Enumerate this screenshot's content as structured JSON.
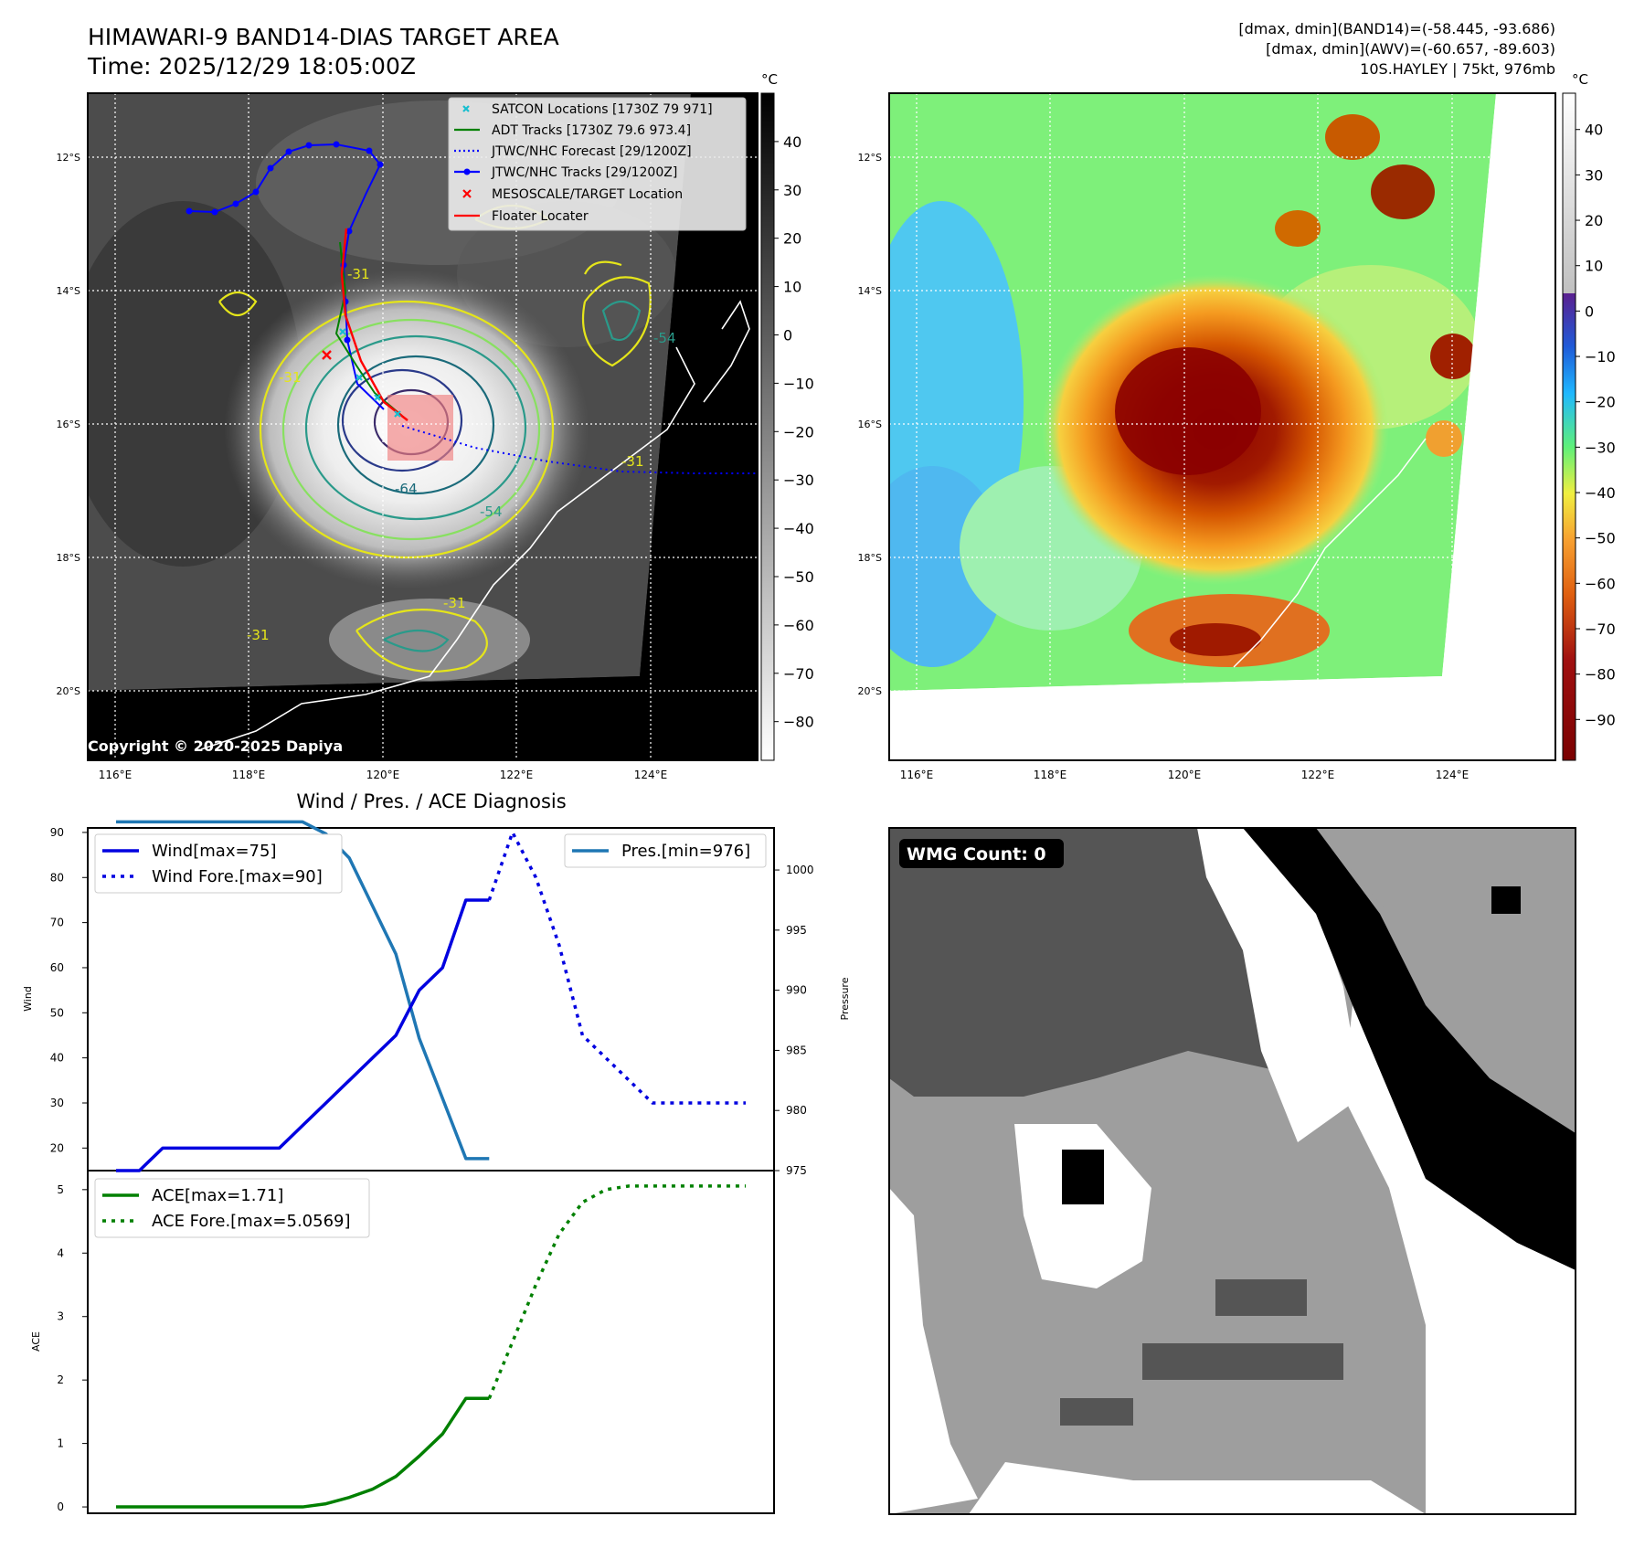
{
  "header": {
    "title": "HIMAWARI-9 BAND14-DIAS TARGET AREA",
    "time": "Time: 2025/12/29 18:05:00Z",
    "dmax_band14": "[dmax, dmin](BAND14)=(-58.445, -93.686)",
    "dmax_awv": "[dmax, dmin](AWV)=(-60.657, -89.603)",
    "storm": "10S.HAYLEY | 75kt, 976mb"
  },
  "map": {
    "lat_labels": [
      "12°S",
      "14°S",
      "16°S",
      "18°S",
      "20°S"
    ],
    "lon_labels": [
      "116°E",
      "118°E",
      "120°E",
      "122°E",
      "124°E"
    ],
    "copyright": "Copyright © 2020-2025 Dapiya",
    "contour_labels": [
      "-31",
      "-54",
      "-64",
      "-31",
      "-31",
      "-54",
      "-31",
      "-31"
    ],
    "legend": [
      {
        "label": "SATCON Locations [1730Z 79 971]",
        "marker": "x",
        "color": "#17becf"
      },
      {
        "label": "ADT Tracks [1730Z 79.6 973.4]",
        "marker": "line",
        "color": "#008000"
      },
      {
        "label": "JTWC/NHC Forecast [29/1200Z]",
        "marker": "dotted",
        "color": "#0000ff"
      },
      {
        "label": "JTWC/NHC Tracks [29/1200Z]",
        "marker": "line-dot",
        "color": "#0000ff"
      },
      {
        "label": "MESOSCALE/TARGET Location",
        "marker": "x",
        "color": "#ff0000"
      },
      {
        "label": "Floater Locater",
        "marker": "line",
        "color": "#ff0000"
      }
    ],
    "colorbar_left": {
      "unit": "°C",
      "ticks": [
        40,
        30,
        20,
        10,
        0,
        -10,
        -20,
        -30,
        -40,
        -50,
        -60,
        -70,
        -80
      ]
    },
    "colorbar_right": {
      "unit": "°C",
      "ticks": [
        40,
        30,
        20,
        10,
        0,
        -10,
        -20,
        -30,
        -40,
        -50,
        -60,
        -70,
        -80,
        -90
      ]
    }
  },
  "wmg": {
    "label": "WMG Count: 0"
  },
  "chart_data": [
    {
      "type": "line",
      "title": "Wind / Pres. / ACE Diagnosis",
      "ylabel": "Wind",
      "ylim": [
        15,
        91
      ],
      "y_ticks": [
        20,
        30,
        40,
        50,
        60,
        70,
        80,
        90
      ],
      "x": [
        0,
        1,
        2,
        3,
        4,
        5,
        6,
        7,
        8,
        9,
        10,
        11,
        12,
        13,
        14,
        15,
        16,
        17,
        18,
        19,
        20,
        21,
        22,
        23,
        24,
        25,
        26,
        27
      ],
      "series": [
        {
          "name": "Wind[max=75]",
          "style": "solid",
          "color": "#0000e0",
          "x": [
            0,
            1,
            2,
            3,
            4,
            5,
            6,
            7,
            8,
            9,
            10,
            11,
            12,
            13,
            14,
            15,
            16
          ],
          "values": [
            15,
            15,
            20,
            20,
            20,
            20,
            20,
            20,
            25,
            30,
            35,
            40,
            45,
            55,
            60,
            75,
            75
          ]
        },
        {
          "name": "Wind Fore.[max=90]",
          "style": "dotted",
          "color": "#0000e0",
          "x": [
            16,
            17,
            18,
            19,
            20,
            21,
            22,
            23,
            24,
            25,
            26,
            27
          ],
          "values": [
            75,
            90,
            80,
            65,
            45,
            40,
            35,
            30,
            30,
            30,
            30,
            30
          ]
        }
      ],
      "secondary": {
        "ylabel": "Pressure",
        "ylim": [
          975,
          1003.5
        ],
        "y_ticks": [
          975,
          980,
          985,
          990,
          995,
          1000
        ],
        "series": [
          {
            "name": "Pres.[min=976]",
            "style": "solid",
            "color": "#1f77b4",
            "x": [
              0,
              1,
              2,
              3,
              4,
              5,
              6,
              7,
              8,
              9,
              10,
              11,
              12,
              13,
              14,
              15,
              16
            ],
            "values": [
              1004,
              1004,
              1004,
              1004,
              1004,
              1004,
              1004,
              1004,
              1004,
              1003,
              1001,
              997,
              993,
              986,
              981,
              976,
              976
            ]
          }
        ]
      }
    },
    {
      "type": "line",
      "ylabel": "ACE",
      "ylim": [
        -0.1,
        5.3
      ],
      "y_ticks": [
        0,
        1,
        2,
        3,
        4,
        5
      ],
      "series": [
        {
          "name": "ACE[max=1.71]",
          "style": "solid",
          "color": "#008000",
          "x": [
            0,
            1,
            2,
            3,
            4,
            5,
            6,
            7,
            8,
            9,
            10,
            11,
            12,
            13,
            14,
            15,
            16
          ],
          "values": [
            0,
            0,
            0,
            0,
            0,
            0,
            0,
            0,
            0,
            0.05,
            0.15,
            0.28,
            0.48,
            0.8,
            1.15,
            1.71,
            1.71
          ]
        },
        {
          "name": "ACE Fore.[max=5.0569]",
          "style": "dotted",
          "color": "#008000",
          "x": [
            16,
            17,
            18,
            19,
            20,
            21,
            22,
            23,
            24,
            25,
            26,
            27
          ],
          "values": [
            1.71,
            2.6,
            3.5,
            4.3,
            4.8,
            5.0,
            5.0569,
            5.0569,
            5.0569,
            5.0569,
            5.0569,
            5.0569
          ]
        }
      ]
    }
  ]
}
